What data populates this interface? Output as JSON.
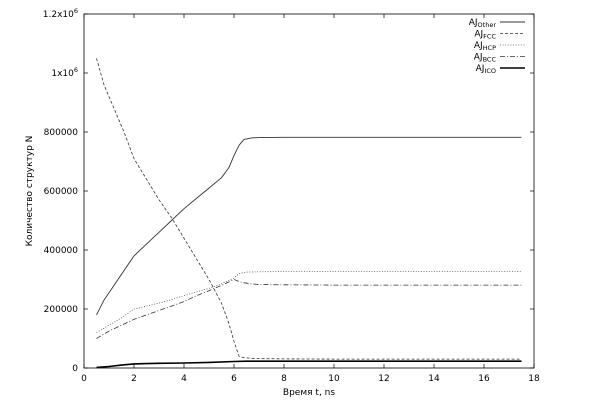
{
  "chart_data": {
    "type": "line",
    "title": "",
    "xlabel": "Время t, ns",
    "ylabel": "Количество структур N",
    "xlim": [
      0,
      18
    ],
    "ylim": [
      0,
      1200000
    ],
    "grid": false,
    "legend_position": "top-right",
    "x_ticks": [
      0,
      2,
      4,
      6,
      8,
      10,
      12,
      14,
      16,
      18
    ],
    "x_tick_labels": [
      "0",
      "2",
      "4",
      "6",
      "8",
      "10",
      "12",
      "14",
      "16",
      "18"
    ],
    "y_ticks": [
      0,
      200000,
      400000,
      600000,
      800000,
      1000000,
      1200000
    ],
    "y_tick_labels": [
      {
        "base": "0",
        "sup": ""
      },
      {
        "base": "200000",
        "sup": ""
      },
      {
        "base": "400000",
        "sup": ""
      },
      {
        "base": "600000",
        "sup": ""
      },
      {
        "base": "800000",
        "sup": ""
      },
      {
        "base": "1x10",
        "sup": "6"
      },
      {
        "base": "1.2x10",
        "sup": "6"
      }
    ],
    "series": [
      {
        "name": "AJ",
        "name_sub": "Other",
        "style": "solid",
        "color": "#333333",
        "width": 0.9,
        "x": [
          0.5,
          0.8,
          1.2,
          1.6,
          2.0,
          2.5,
          3.0,
          3.5,
          4.0,
          4.5,
          5.0,
          5.5,
          5.8,
          6.0,
          6.2,
          6.4,
          6.7,
          7.0,
          8.0,
          10.0,
          12.0,
          14.0,
          16.0,
          17.5
        ],
        "y": [
          180000,
          230000,
          280000,
          330000,
          380000,
          420000,
          460000,
          500000,
          540000,
          575000,
          610000,
          645000,
          680000,
          720000,
          755000,
          775000,
          780000,
          781000,
          782000,
          782000,
          782000,
          782000,
          782000,
          782000
        ]
      },
      {
        "name": "AJ",
        "name_sub": "FCC",
        "style": "dashed",
        "color": "#333333",
        "width": 0.8,
        "x": [
          0.5,
          0.8,
          1.2,
          1.6,
          2.0,
          2.5,
          3.0,
          3.5,
          4.0,
          4.5,
          5.0,
          5.5,
          5.8,
          6.0,
          6.2,
          6.4,
          6.7,
          7.0,
          8.0,
          10.0,
          12.0,
          14.0,
          16.0,
          17.5
        ],
        "y": [
          1050000,
          960000,
          880000,
          800000,
          710000,
          640000,
          570000,
          510000,
          440000,
          370000,
          300000,
          220000,
          150000,
          90000,
          40000,
          35000,
          33000,
          32000,
          31000,
          30000,
          30000,
          30000,
          30000,
          30000
        ]
      },
      {
        "name": "AJ",
        "name_sub": "HCP",
        "style": "dotted",
        "color": "#555555",
        "width": 0.8,
        "x": [
          0.5,
          1.0,
          1.5,
          2.0,
          2.5,
          3.0,
          3.5,
          4.0,
          4.5,
          5.0,
          5.5,
          6.0,
          6.2,
          6.5,
          7.0,
          8.0,
          10.0,
          12.0,
          14.0,
          16.0,
          17.5
        ],
        "y": [
          120000,
          145000,
          170000,
          200000,
          210000,
          220000,
          232000,
          245000,
          258000,
          270000,
          285000,
          305000,
          320000,
          325000,
          326000,
          327000,
          327000,
          327000,
          327000,
          327000,
          327000
        ]
      },
      {
        "name": "AJ",
        "name_sub": "BCC",
        "style": "dashdot",
        "color": "#333333",
        "width": 0.8,
        "x": [
          0.5,
          1.0,
          1.5,
          2.0,
          2.5,
          3.0,
          3.5,
          4.0,
          4.5,
          5.0,
          5.5,
          6.0,
          6.3,
          6.7,
          7.0,
          8.0,
          10.0,
          12.0,
          14.0,
          16.0,
          17.5
        ],
        "y": [
          100000,
          125000,
          145000,
          165000,
          180000,
          195000,
          210000,
          225000,
          245000,
          262000,
          280000,
          300000,
          290000,
          285000,
          283000,
          282000,
          281000,
          281000,
          281000,
          281000,
          281000
        ]
      },
      {
        "name": "AJ",
        "name_sub": "ICO",
        "style": "solid",
        "color": "#000000",
        "width": 1.6,
        "x": [
          0.5,
          1.0,
          1.5,
          2.0,
          2.5,
          3.0,
          4.0,
          5.0,
          6.0,
          6.5,
          8.0,
          10.0,
          12.0,
          14.0,
          16.0,
          17.5
        ],
        "y": [
          2000,
          5000,
          10000,
          14000,
          15000,
          16000,
          17000,
          19000,
          22000,
          23000,
          23000,
          23000,
          23000,
          23000,
          23000,
          23000
        ]
      }
    ]
  }
}
